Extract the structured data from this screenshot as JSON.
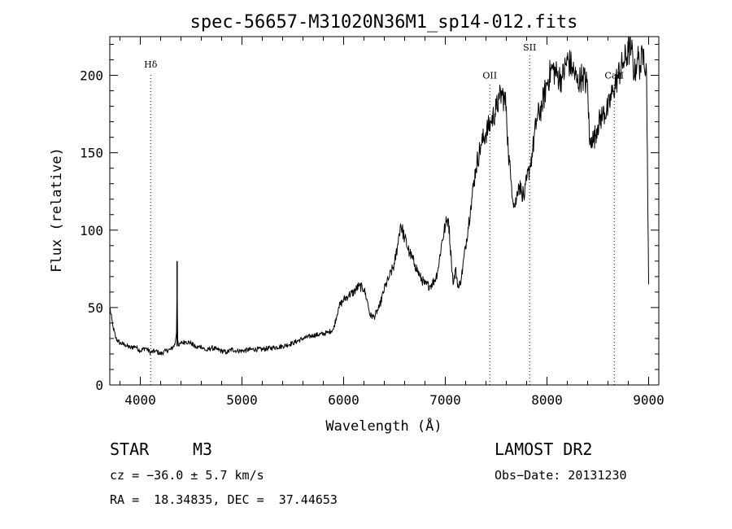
{
  "chart_data": {
    "type": "line",
    "title": "spec-56657-M31020N36M1_sp14-012.fits",
    "xlabel": "Wavelength (Å)",
    "ylabel": "Flux (relative)",
    "xlim": [
      3700,
      9100
    ],
    "ylim": [
      0,
      225
    ],
    "x_ticks": [
      4000,
      5000,
      6000,
      7000,
      8000,
      9000
    ],
    "y_ticks": [
      0,
      50,
      100,
      150,
      200
    ],
    "grid": false,
    "series": [
      {
        "x": [
          3700,
          3730,
          3760,
          3800,
          3850,
          3900,
          3950,
          4000,
          4050,
          4100,
          4150,
          4200,
          4250,
          4300,
          4340,
          4358,
          4362,
          4366,
          4380,
          4400,
          4450,
          4500,
          4550,
          4600,
          4650,
          4700,
          4750,
          4800,
          4850,
          4900,
          4950,
          5000,
          5100,
          5200,
          5300,
          5400,
          5500,
          5600,
          5700,
          5800,
          5850,
          5900,
          5950,
          6000,
          6050,
          6100,
          6150,
          6200,
          6230,
          6260,
          6300,
          6350,
          6400,
          6450,
          6500,
          6530,
          6560,
          6600,
          6650,
          6700,
          6750,
          6800,
          6850,
          6900,
          6930,
          6960,
          7000,
          7030,
          7060,
          7080,
          7100,
          7130,
          7160,
          7200,
          7250,
          7300,
          7350,
          7400,
          7450,
          7500,
          7530,
          7560,
          7600,
          7620,
          7650,
          7680,
          7700,
          7720,
          7750,
          7780,
          7800,
          7830,
          7860,
          7900,
          7950,
          8000,
          8050,
          8100,
          8150,
          8200,
          8250,
          8300,
          8350,
          8400,
          8420,
          8440,
          8460,
          8500,
          8550,
          8600,
          8650,
          8700,
          8750,
          8800,
          8830,
          8860,
          8890,
          8920,
          8950,
          8980,
          9000
        ],
        "values": [
          50,
          38,
          30,
          27,
          26,
          24,
          25,
          22,
          24,
          21,
          22,
          20,
          22,
          23,
          26,
          35,
          80,
          30,
          25,
          27,
          28,
          27,
          24,
          25,
          22,
          24,
          23,
          22,
          21,
          23,
          22,
          22,
          23,
          23,
          24,
          25,
          27,
          30,
          32,
          33,
          34,
          36,
          50,
          55,
          58,
          60,
          64,
          62,
          55,
          45,
          44,
          50,
          62,
          70,
          78,
          90,
          104,
          95,
          85,
          78,
          70,
          65,
          64,
          68,
          75,
          90,
          103,
          108,
          80,
          65,
          75,
          62,
          70,
          90,
          115,
          140,
          155,
          163,
          170,
          178,
          185,
          188,
          180,
          150,
          130,
          115,
          120,
          130,
          125,
          122,
          132,
          140,
          152,
          172,
          180,
          195,
          205,
          200,
          198,
          210,
          205,
          195,
          200,
          193,
          155,
          160,
          158,
          168,
          175,
          178,
          190,
          200,
          208,
          215,
          218,
          200,
          212,
          205,
          218,
          200,
          65
        ]
      }
    ],
    "annotations": [
      {
        "label": "Hδ",
        "x": 4102,
        "label_y": 205
      },
      {
        "label": "OII",
        "x": 7438,
        "label_y": 198
      },
      {
        "label": "SII",
        "x": 7830,
        "label_y": 216
      },
      {
        "label": "CaII",
        "x": 8662,
        "label_y": 198
      }
    ]
  },
  "info": {
    "class_label": "STAR",
    "subclass": "M3",
    "survey": "LAMOST DR2",
    "cz": "cz = −36.0 ± 5.7 km/s",
    "obs_date": "Obs−Date: 20131230",
    "coords": "RA =  18.34835, DEC =  37.44653"
  }
}
